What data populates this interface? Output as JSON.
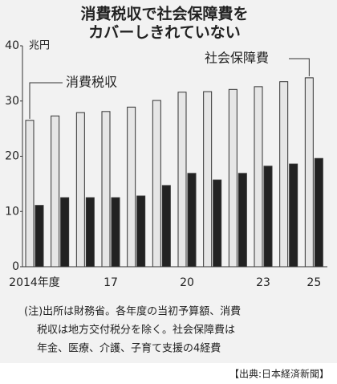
{
  "chart_data": {
    "type": "bar",
    "title": [
      "消費税収で社会保障費を",
      "カバーしきれていない"
    ],
    "y_unit": "兆円",
    "categories": [
      "2014年度",
      null,
      null,
      "17",
      null,
      null,
      "20",
      null,
      null,
      "23",
      null,
      "25"
    ],
    "series": [
      {
        "name": "社会保障費",
        "color": "#e6e6e6",
        "values": [
          26.5,
          27.3,
          27.9,
          28.1,
          28.9,
          30.1,
          31.6,
          31.7,
          32.1,
          32.6,
          33.5,
          34.2
        ]
      },
      {
        "name": "消費税収",
        "color": "#222222",
        "values": [
          11.1,
          12.5,
          12.5,
          12.5,
          12.8,
          14.7,
          16.9,
          15.7,
          16.9,
          18.2,
          18.6,
          19.6
        ]
      }
    ],
    "ylim": [
      0,
      40
    ],
    "yticks": [
      0,
      10,
      20,
      30,
      40
    ],
    "grid": false,
    "note_lines": [
      "(注)出所は財務省。各年度の当初予算額、消費",
      "税収は地方交付税分を除く。社会保障費は",
      "年金、医療、介護、子育て支援の4経費"
    ],
    "source": "【出典:日本経済新聞】"
  }
}
